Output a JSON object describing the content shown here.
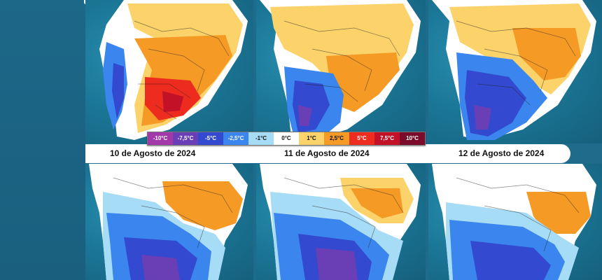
{
  "legend": {
    "items": [
      {
        "label": "-10°C",
        "color": "#a339a8",
        "text_color": "#ffffff"
      },
      {
        "label": "-7,5°C",
        "color": "#6a3fb6",
        "text_color": "#ffffff"
      },
      {
        "label": "-5°C",
        "color": "#3349cf",
        "text_color": "#ffffff"
      },
      {
        "label": "-2,5°C",
        "color": "#3a86ee",
        "text_color": "#ffffff"
      },
      {
        "label": "-1°C",
        "color": "#a7dcf6",
        "text_color": "#111111"
      },
      {
        "label": "0°C",
        "color": "#ffffff",
        "text_color": "#111111"
      },
      {
        "label": "1°C",
        "color": "#fcd36b",
        "text_color": "#111111"
      },
      {
        "label": "2,5°C",
        "color": "#f59a25",
        "text_color": "#111111"
      },
      {
        "label": "5°C",
        "color": "#ee2b1f",
        "text_color": "#ffffff"
      },
      {
        "label": "7,5°C",
        "color": "#c31227",
        "text_color": "#ffffff"
      },
      {
        "label": "10°C",
        "color": "#7a0b2a",
        "text_color": "#ffffff"
      }
    ]
  },
  "dates": [
    "10 de Agosto de 2024",
    "11 de Agosto de 2024",
    "12 de Agosto de 2024"
  ],
  "maps": [
    {
      "dominant": "warm",
      "note": "orange-red interior"
    },
    {
      "dominant": "mixed",
      "note": "blue south, orange north"
    },
    {
      "dominant": "mixed-cold",
      "note": "blue south, orange north"
    },
    {
      "dominant": "cold",
      "note": "purple-blue south"
    },
    {
      "dominant": "cold",
      "note": "purple-blue south"
    },
    {
      "dominant": "cold",
      "note": "blue south, orange northeast"
    }
  ],
  "colors": {
    "ocean": "#1b7797",
    "sidebar": "#1d6788"
  }
}
